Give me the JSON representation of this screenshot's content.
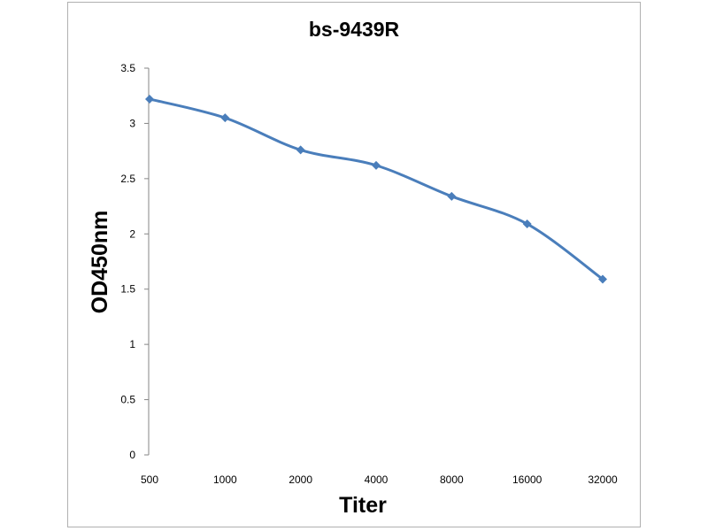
{
  "chart_data": {
    "type": "line",
    "title": "bs-9439R",
    "xlabel": "Titer",
    "ylabel": "OD450nm",
    "categories": [
      "500",
      "1000",
      "2000",
      "4000",
      "8000",
      "16000",
      "32000"
    ],
    "series": [
      {
        "values": [
          3.22,
          3.05,
          2.76,
          2.62,
          2.34,
          2.09,
          1.59
        ],
        "color": "#4a7ebb"
      }
    ],
    "yticks": [
      "0",
      "0.5",
      "1",
      "1.5",
      "2",
      "2.5",
      "3",
      "3.5"
    ],
    "ylim": [
      0,
      3.5
    ],
    "grid": false,
    "legend": "none",
    "marker": "diamond"
  }
}
